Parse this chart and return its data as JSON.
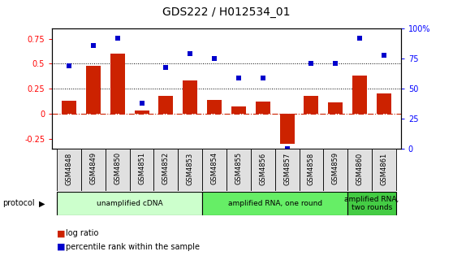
{
  "title": "GDS222 / H012534_01",
  "samples": [
    "GSM4848",
    "GSM4849",
    "GSM4850",
    "GSM4851",
    "GSM4852",
    "GSM4853",
    "GSM4854",
    "GSM4855",
    "GSM4856",
    "GSM4857",
    "GSM4858",
    "GSM4859",
    "GSM4860",
    "GSM4861"
  ],
  "log_ratio": [
    0.13,
    0.48,
    0.6,
    0.03,
    0.18,
    0.33,
    0.14,
    0.07,
    0.12,
    -0.3,
    0.18,
    0.11,
    0.38,
    0.2
  ],
  "percentile": [
    69,
    86,
    92,
    38,
    68,
    79,
    75,
    59,
    59,
    0,
    71,
    71,
    92,
    78
  ],
  "bar_color": "#cc2200",
  "dot_color": "#0000cc",
  "ylim_left": [
    -0.35,
    0.85
  ],
  "ylim_right": [
    0,
    100
  ],
  "yticks_left": [
    -0.25,
    0.0,
    0.25,
    0.5,
    0.75
  ],
  "yticks_right": [
    0,
    25,
    50,
    75,
    100
  ],
  "protocol_groups": [
    {
      "label": "unamplified cDNA",
      "start": 0,
      "end": 6,
      "color": "#ccffcc"
    },
    {
      "label": "amplified RNA, one round",
      "start": 6,
      "end": 12,
      "color": "#66ee66"
    },
    {
      "label": "amplified RNA,\ntwo rounds",
      "start": 12,
      "end": 14,
      "color": "#44cc44"
    }
  ],
  "legend_bar_label": "log ratio",
  "legend_dot_label": "percentile rank within the sample",
  "background_color": "#ffffff"
}
